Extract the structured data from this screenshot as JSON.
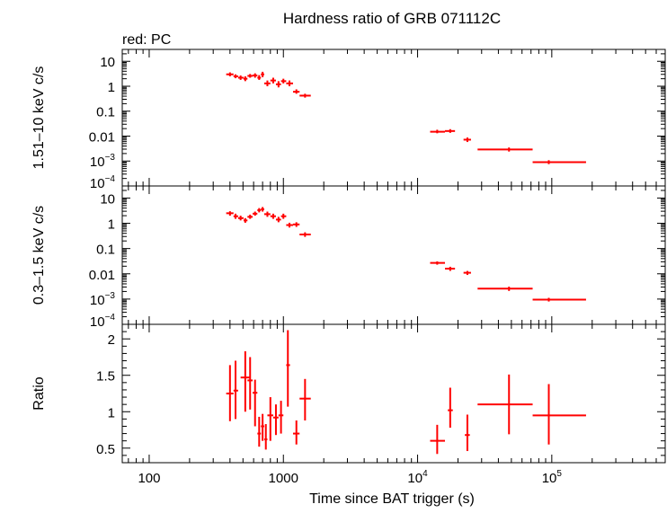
{
  "chart_data": {
    "title": "Hardness ratio of GRB 071112C",
    "subtitle": "red: PC",
    "xlabel": "Time since BAT trigger (s)",
    "x_scale": "log",
    "xlim": [
      63,
      700000
    ],
    "x_tick_labels": [
      {
        "value": 100,
        "base": "100",
        "exp": ""
      },
      {
        "value": 1000,
        "base": "1000",
        "exp": ""
      },
      {
        "value": 10000,
        "base": "10",
        "exp": "4"
      },
      {
        "value": 100000,
        "base": "10",
        "exp": "5"
      }
    ],
    "series_color": "#ff0000",
    "panels": [
      {
        "type": "scatter",
        "ylabel": "1.51–10 keV c/s",
        "y_scale": "log",
        "ylim": [
          0.0001,
          30
        ],
        "y_tick_labels": [
          {
            "value": 10,
            "base": "10",
            "exp": ""
          },
          {
            "value": 1,
            "base": "1",
            "exp": ""
          },
          {
            "value": 0.1,
            "base": "0.1",
            "exp": ""
          },
          {
            "value": 0.01,
            "base": "0.01",
            "exp": ""
          },
          {
            "value": 0.001,
            "base": "10",
            "exp": "−3"
          },
          {
            "value": 0.0001,
            "base": "10",
            "exp": "−4"
          }
        ],
        "points": [
          {
            "x": 400,
            "xlo": 375,
            "xhi": 425,
            "y": 3.0,
            "ylo": 2.5,
            "yhi": 3.6
          },
          {
            "x": 440,
            "xlo": 425,
            "xhi": 460,
            "y": 2.5,
            "ylo": 2.1,
            "yhi": 3.0
          },
          {
            "x": 480,
            "xlo": 460,
            "xhi": 505,
            "y": 2.2,
            "ylo": 1.8,
            "yhi": 2.7
          },
          {
            "x": 520,
            "xlo": 505,
            "xhi": 540,
            "y": 2.0,
            "ylo": 1.6,
            "yhi": 2.5
          },
          {
            "x": 565,
            "xlo": 540,
            "xhi": 590,
            "y": 2.6,
            "ylo": 2.2,
            "yhi": 3.1
          },
          {
            "x": 615,
            "xlo": 590,
            "xhi": 640,
            "y": 2.7,
            "ylo": 2.2,
            "yhi": 3.3
          },
          {
            "x": 660,
            "xlo": 640,
            "xhi": 680,
            "y": 2.2,
            "ylo": 1.8,
            "yhi": 2.8
          },
          {
            "x": 700,
            "xlo": 680,
            "xhi": 720,
            "y": 3.0,
            "ylo": 2.3,
            "yhi": 3.8
          },
          {
            "x": 760,
            "xlo": 720,
            "xhi": 800,
            "y": 1.3,
            "ylo": 1.0,
            "yhi": 1.7
          },
          {
            "x": 840,
            "xlo": 800,
            "xhi": 880,
            "y": 1.7,
            "ylo": 1.3,
            "yhi": 2.2
          },
          {
            "x": 920,
            "xlo": 880,
            "xhi": 960,
            "y": 1.2,
            "ylo": 0.9,
            "yhi": 1.6
          },
          {
            "x": 1000,
            "xlo": 960,
            "xhi": 1050,
            "y": 1.6,
            "ylo": 1.3,
            "yhi": 2.0
          },
          {
            "x": 1110,
            "xlo": 1050,
            "xhi": 1180,
            "y": 1.3,
            "ylo": 1.0,
            "yhi": 1.7
          },
          {
            "x": 1250,
            "xlo": 1180,
            "xhi": 1320,
            "y": 0.6,
            "ylo": 0.5,
            "yhi": 0.75
          },
          {
            "x": 1450,
            "xlo": 1320,
            "xhi": 1600,
            "y": 0.42,
            "ylo": 0.35,
            "yhi": 0.5
          },
          {
            "x": 14000,
            "xlo": 12400,
            "xhi": 16000,
            "y": 0.015,
            "ylo": 0.013,
            "yhi": 0.018
          },
          {
            "x": 17500,
            "xlo": 16000,
            "xhi": 19000,
            "y": 0.016,
            "ylo": 0.0135,
            "yhi": 0.019
          },
          {
            "x": 23500,
            "xlo": 22000,
            "xhi": 25000,
            "y": 0.0072,
            "ylo": 0.0058,
            "yhi": 0.0088
          },
          {
            "x": 48000,
            "xlo": 28000,
            "xhi": 72000,
            "y": 0.0029,
            "ylo": 0.0024,
            "yhi": 0.0035
          },
          {
            "x": 95000,
            "xlo": 72000,
            "xhi": 180000,
            "y": 0.0009,
            "ylo": 0.00075,
            "yhi": 0.00108
          }
        ]
      },
      {
        "type": "scatter",
        "ylabel": "0.3–1.5 keV c/s",
        "y_scale": "log",
        "ylim": [
          0.0001,
          30
        ],
        "y_tick_labels": [
          {
            "value": 10,
            "base": "10",
            "exp": ""
          },
          {
            "value": 1,
            "base": "1",
            "exp": ""
          },
          {
            "value": 0.1,
            "base": "0.1",
            "exp": ""
          },
          {
            "value": 0.01,
            "base": "0.01",
            "exp": ""
          },
          {
            "value": 0.001,
            "base": "10",
            "exp": "−3"
          },
          {
            "value": 0.0001,
            "base": "10",
            "exp": "−4"
          }
        ],
        "points": [
          {
            "x": 400,
            "xlo": 375,
            "xhi": 425,
            "y": 2.5,
            "ylo": 2.0,
            "yhi": 3.0
          },
          {
            "x": 440,
            "xlo": 425,
            "xhi": 460,
            "y": 1.9,
            "ylo": 1.5,
            "yhi": 2.4
          },
          {
            "x": 480,
            "xlo": 460,
            "xhi": 505,
            "y": 1.6,
            "ylo": 1.3,
            "yhi": 2.0
          },
          {
            "x": 520,
            "xlo": 505,
            "xhi": 540,
            "y": 1.3,
            "ylo": 1.05,
            "yhi": 1.6
          },
          {
            "x": 565,
            "xlo": 540,
            "xhi": 590,
            "y": 1.8,
            "ylo": 1.5,
            "yhi": 2.2
          },
          {
            "x": 615,
            "xlo": 590,
            "xhi": 640,
            "y": 2.4,
            "ylo": 2.0,
            "yhi": 2.9
          },
          {
            "x": 660,
            "xlo": 640,
            "xhi": 680,
            "y": 3.3,
            "ylo": 2.7,
            "yhi": 4.0
          },
          {
            "x": 700,
            "xlo": 680,
            "xhi": 720,
            "y": 3.6,
            "ylo": 2.9,
            "yhi": 4.4
          },
          {
            "x": 760,
            "xlo": 720,
            "xhi": 800,
            "y": 2.3,
            "ylo": 1.8,
            "yhi": 2.9
          },
          {
            "x": 840,
            "xlo": 800,
            "xhi": 880,
            "y": 1.9,
            "ylo": 1.5,
            "yhi": 2.4
          },
          {
            "x": 920,
            "xlo": 880,
            "xhi": 960,
            "y": 1.4,
            "ylo": 1.1,
            "yhi": 1.8
          },
          {
            "x": 1000,
            "xlo": 960,
            "xhi": 1050,
            "y": 1.9,
            "ylo": 1.5,
            "yhi": 2.4
          },
          {
            "x": 1110,
            "xlo": 1050,
            "xhi": 1180,
            "y": 0.85,
            "ylo": 0.68,
            "yhi": 1.05
          },
          {
            "x": 1250,
            "xlo": 1180,
            "xhi": 1320,
            "y": 0.9,
            "ylo": 0.72,
            "yhi": 1.1
          },
          {
            "x": 1450,
            "xlo": 1320,
            "xhi": 1600,
            "y": 0.36,
            "ylo": 0.29,
            "yhi": 0.44
          },
          {
            "x": 14000,
            "xlo": 12400,
            "xhi": 16000,
            "y": 0.027,
            "ylo": 0.023,
            "yhi": 0.031
          },
          {
            "x": 17500,
            "xlo": 16000,
            "xhi": 19000,
            "y": 0.016,
            "ylo": 0.013,
            "yhi": 0.019
          },
          {
            "x": 23500,
            "xlo": 22000,
            "xhi": 25000,
            "y": 0.011,
            "ylo": 0.009,
            "yhi": 0.013
          },
          {
            "x": 48000,
            "xlo": 28000,
            "xhi": 72000,
            "y": 0.0026,
            "ylo": 0.0021,
            "yhi": 0.0031
          },
          {
            "x": 95000,
            "xlo": 72000,
            "xhi": 180000,
            "y": 0.00095,
            "ylo": 0.0008,
            "yhi": 0.00112
          }
        ]
      },
      {
        "type": "scatter",
        "ylabel": "Ratio",
        "y_scale": "linear",
        "ylim": [
          0.3,
          2.2
        ],
        "y_tick_labels": [
          {
            "value": 0.5,
            "base": "0.5",
            "exp": ""
          },
          {
            "value": 1,
            "base": "1",
            "exp": ""
          },
          {
            "value": 1.5,
            "base": "1.5",
            "exp": ""
          },
          {
            "value": 2,
            "base": "2",
            "exp": ""
          }
        ],
        "points": [
          {
            "x": 400,
            "xlo": 375,
            "xhi": 425,
            "y": 1.25,
            "ylo": 0.87,
            "yhi": 1.64
          },
          {
            "x": 440,
            "xlo": 425,
            "xhi": 460,
            "y": 1.29,
            "ylo": 0.9,
            "yhi": 1.7
          },
          {
            "x": 520,
            "xlo": 480,
            "xhi": 560,
            "y": 1.47,
            "ylo": 1.0,
            "yhi": 1.83
          },
          {
            "x": 565,
            "xlo": 540,
            "xhi": 590,
            "y": 1.43,
            "ylo": 1.03,
            "yhi": 1.75
          },
          {
            "x": 615,
            "xlo": 590,
            "xhi": 640,
            "y": 1.26,
            "ylo": 0.8,
            "yhi": 1.44
          },
          {
            "x": 660,
            "xlo": 640,
            "xhi": 680,
            "y": 0.7,
            "ylo": 0.52,
            "yhi": 0.93
          },
          {
            "x": 700,
            "xlo": 680,
            "xhi": 720,
            "y": 0.8,
            "ylo": 0.6,
            "yhi": 0.97
          },
          {
            "x": 740,
            "xlo": 720,
            "xhi": 760,
            "y": 0.62,
            "ylo": 0.48,
            "yhi": 0.83
          },
          {
            "x": 800,
            "xlo": 760,
            "xhi": 840,
            "y": 0.95,
            "ylo": 0.6,
            "yhi": 1.2
          },
          {
            "x": 880,
            "xlo": 840,
            "xhi": 920,
            "y": 0.92,
            "ylo": 0.68,
            "yhi": 1.1
          },
          {
            "x": 960,
            "xlo": 920,
            "xhi": 1000,
            "y": 0.95,
            "ylo": 0.7,
            "yhi": 1.15
          },
          {
            "x": 1080,
            "xlo": 1050,
            "xhi": 1120,
            "y": 1.64,
            "ylo": 1.07,
            "yhi": 2.12
          },
          {
            "x": 1250,
            "xlo": 1180,
            "xhi": 1320,
            "y": 0.7,
            "ylo": 0.55,
            "yhi": 0.88
          },
          {
            "x": 1450,
            "xlo": 1320,
            "xhi": 1600,
            "y": 1.18,
            "ylo": 0.88,
            "yhi": 1.45
          },
          {
            "x": 14000,
            "xlo": 12400,
            "xhi": 16000,
            "y": 0.6,
            "ylo": 0.42,
            "yhi": 0.82
          },
          {
            "x": 17500,
            "xlo": 16800,
            "xhi": 18300,
            "y": 1.02,
            "ylo": 0.78,
            "yhi": 1.33
          },
          {
            "x": 23500,
            "xlo": 22500,
            "xhi": 24500,
            "y": 0.68,
            "ylo": 0.46,
            "yhi": 0.96
          },
          {
            "x": 48000,
            "xlo": 28000,
            "xhi": 72000,
            "y": 1.1,
            "ylo": 0.69,
            "yhi": 1.51
          },
          {
            "x": 95000,
            "xlo": 72000,
            "xhi": 180000,
            "y": 0.95,
            "ylo": 0.55,
            "yhi": 1.38
          }
        ]
      }
    ]
  }
}
